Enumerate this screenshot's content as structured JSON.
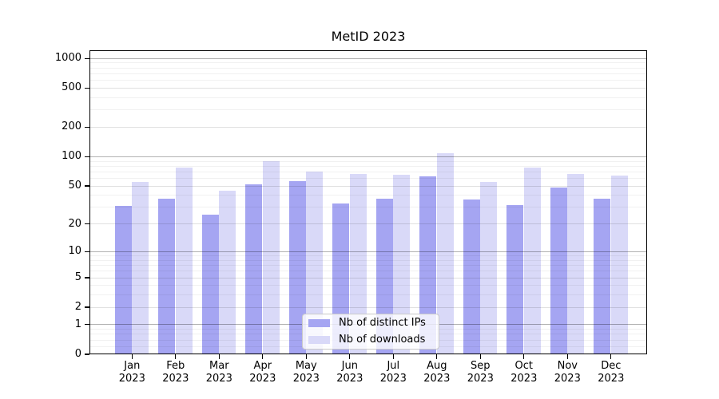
{
  "chart_data": {
    "type": "bar",
    "title": "MetID 2023",
    "categories": [
      "Jan",
      "Feb",
      "Mar",
      "Apr",
      "May",
      "Jun",
      "Jul",
      "Aug",
      "Sep",
      "Oct",
      "Nov",
      "Dec"
    ],
    "year_label": "2023",
    "series": [
      {
        "id": "distinct-ips",
        "name": "Nb of distinct IPs",
        "color": "#a5a5f2",
        "values": [
          31,
          37,
          25,
          52,
          56,
          33,
          37,
          63,
          36,
          32,
          48,
          37
        ]
      },
      {
        "id": "downloads",
        "name": "Nb of downloads",
        "color": "#d9d9f8",
        "values": [
          55,
          77,
          45,
          90,
          71,
          67,
          66,
          109,
          55,
          78,
          67,
          64
        ]
      }
    ],
    "y_ticks": [
      0,
      1,
      2,
      5,
      10,
      20,
      50,
      100,
      200,
      500,
      1000
    ],
    "y_scale": "log10(1+v)",
    "ylim": [
      0,
      1200
    ],
    "xlabel": "",
    "ylabel": "",
    "grid": true,
    "legend_position": "bottom-center"
  }
}
